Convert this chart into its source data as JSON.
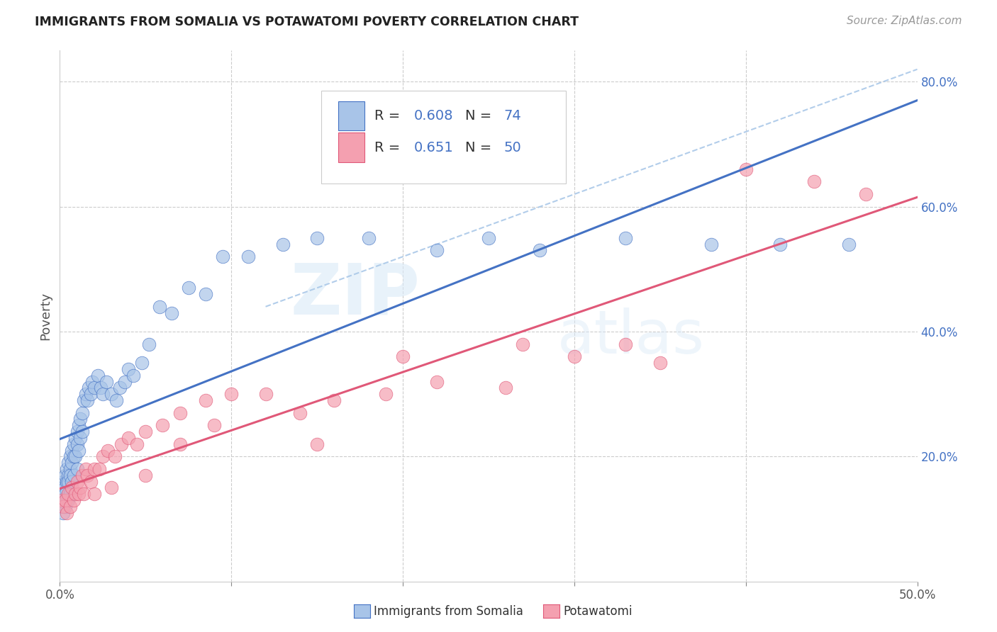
{
  "title": "IMMIGRANTS FROM SOMALIA VS POTAWATOMI POVERTY CORRELATION CHART",
  "source": "Source: ZipAtlas.com",
  "ylabel": "Poverty",
  "xlim": [
    0,
    0.5
  ],
  "ylim": [
    0,
    0.85
  ],
  "x_tick_labels": [
    "0.0%",
    "",
    "",
    "",
    "",
    "50.0%"
  ],
  "x_ticks": [
    0.0,
    0.1,
    0.2,
    0.3,
    0.4,
    0.5
  ],
  "y_ticks_right": [
    0.2,
    0.4,
    0.6,
    0.8
  ],
  "y_tick_labels_right": [
    "20.0%",
    "40.0%",
    "60.0%",
    "80.0%"
  ],
  "legend_label1": "Immigrants from Somalia",
  "legend_label2": "Potawatomi",
  "R1": "0.608",
  "N1": "74",
  "R2": "0.651",
  "N2": "50",
  "color_somalia": "#a8c4e8",
  "color_potawatomi": "#f4a0b0",
  "color_somalia_line": "#4472c4",
  "color_potawatomi_line": "#e05878",
  "color_dashed": "#aac8e8",
  "watermark_zip": "ZIP",
  "watermark_atlas": "atlas",
  "somalia_x": [
    0.001,
    0.001,
    0.001,
    0.002,
    0.002,
    0.002,
    0.002,
    0.003,
    0.003,
    0.003,
    0.003,
    0.004,
    0.004,
    0.004,
    0.005,
    0.005,
    0.005,
    0.005,
    0.006,
    0.006,
    0.006,
    0.006,
    0.007,
    0.007,
    0.007,
    0.008,
    0.008,
    0.008,
    0.009,
    0.009,
    0.01,
    0.01,
    0.01,
    0.011,
    0.011,
    0.012,
    0.012,
    0.013,
    0.013,
    0.014,
    0.015,
    0.016,
    0.017,
    0.018,
    0.019,
    0.02,
    0.022,
    0.024,
    0.025,
    0.027,
    0.03,
    0.033,
    0.035,
    0.038,
    0.04,
    0.043,
    0.048,
    0.052,
    0.058,
    0.065,
    0.075,
    0.085,
    0.095,
    0.11,
    0.13,
    0.15,
    0.18,
    0.22,
    0.25,
    0.28,
    0.33,
    0.38,
    0.42,
    0.46
  ],
  "somalia_y": [
    0.14,
    0.13,
    0.12,
    0.16,
    0.15,
    0.14,
    0.11,
    0.17,
    0.15,
    0.14,
    0.12,
    0.18,
    0.16,
    0.13,
    0.19,
    0.17,
    0.16,
    0.13,
    0.2,
    0.18,
    0.17,
    0.14,
    0.21,
    0.19,
    0.16,
    0.22,
    0.2,
    0.17,
    0.23,
    0.2,
    0.24,
    0.22,
    0.18,
    0.25,
    0.21,
    0.26,
    0.23,
    0.27,
    0.24,
    0.29,
    0.3,
    0.29,
    0.31,
    0.3,
    0.32,
    0.31,
    0.33,
    0.31,
    0.3,
    0.32,
    0.3,
    0.29,
    0.31,
    0.32,
    0.34,
    0.33,
    0.35,
    0.38,
    0.44,
    0.43,
    0.47,
    0.46,
    0.52,
    0.52,
    0.54,
    0.55,
    0.55,
    0.53,
    0.55,
    0.53,
    0.55,
    0.54,
    0.54,
    0.54
  ],
  "potawatomi_x": [
    0.001,
    0.002,
    0.003,
    0.004,
    0.005,
    0.006,
    0.007,
    0.008,
    0.009,
    0.01,
    0.011,
    0.012,
    0.013,
    0.014,
    0.015,
    0.016,
    0.018,
    0.02,
    0.023,
    0.025,
    0.028,
    0.032,
    0.036,
    0.04,
    0.045,
    0.05,
    0.06,
    0.07,
    0.085,
    0.1,
    0.12,
    0.14,
    0.16,
    0.19,
    0.22,
    0.26,
    0.3,
    0.35,
    0.4,
    0.44,
    0.47,
    0.33,
    0.27,
    0.2,
    0.15,
    0.09,
    0.07,
    0.05,
    0.03,
    0.02
  ],
  "potawatomi_y": [
    0.13,
    0.12,
    0.13,
    0.11,
    0.14,
    0.12,
    0.15,
    0.13,
    0.14,
    0.16,
    0.14,
    0.15,
    0.17,
    0.14,
    0.18,
    0.17,
    0.16,
    0.18,
    0.18,
    0.2,
    0.21,
    0.2,
    0.22,
    0.23,
    0.22,
    0.24,
    0.25,
    0.27,
    0.29,
    0.3,
    0.3,
    0.27,
    0.29,
    0.3,
    0.32,
    0.31,
    0.36,
    0.35,
    0.66,
    0.64,
    0.62,
    0.38,
    0.38,
    0.36,
    0.22,
    0.25,
    0.22,
    0.17,
    0.15,
    0.14
  ]
}
